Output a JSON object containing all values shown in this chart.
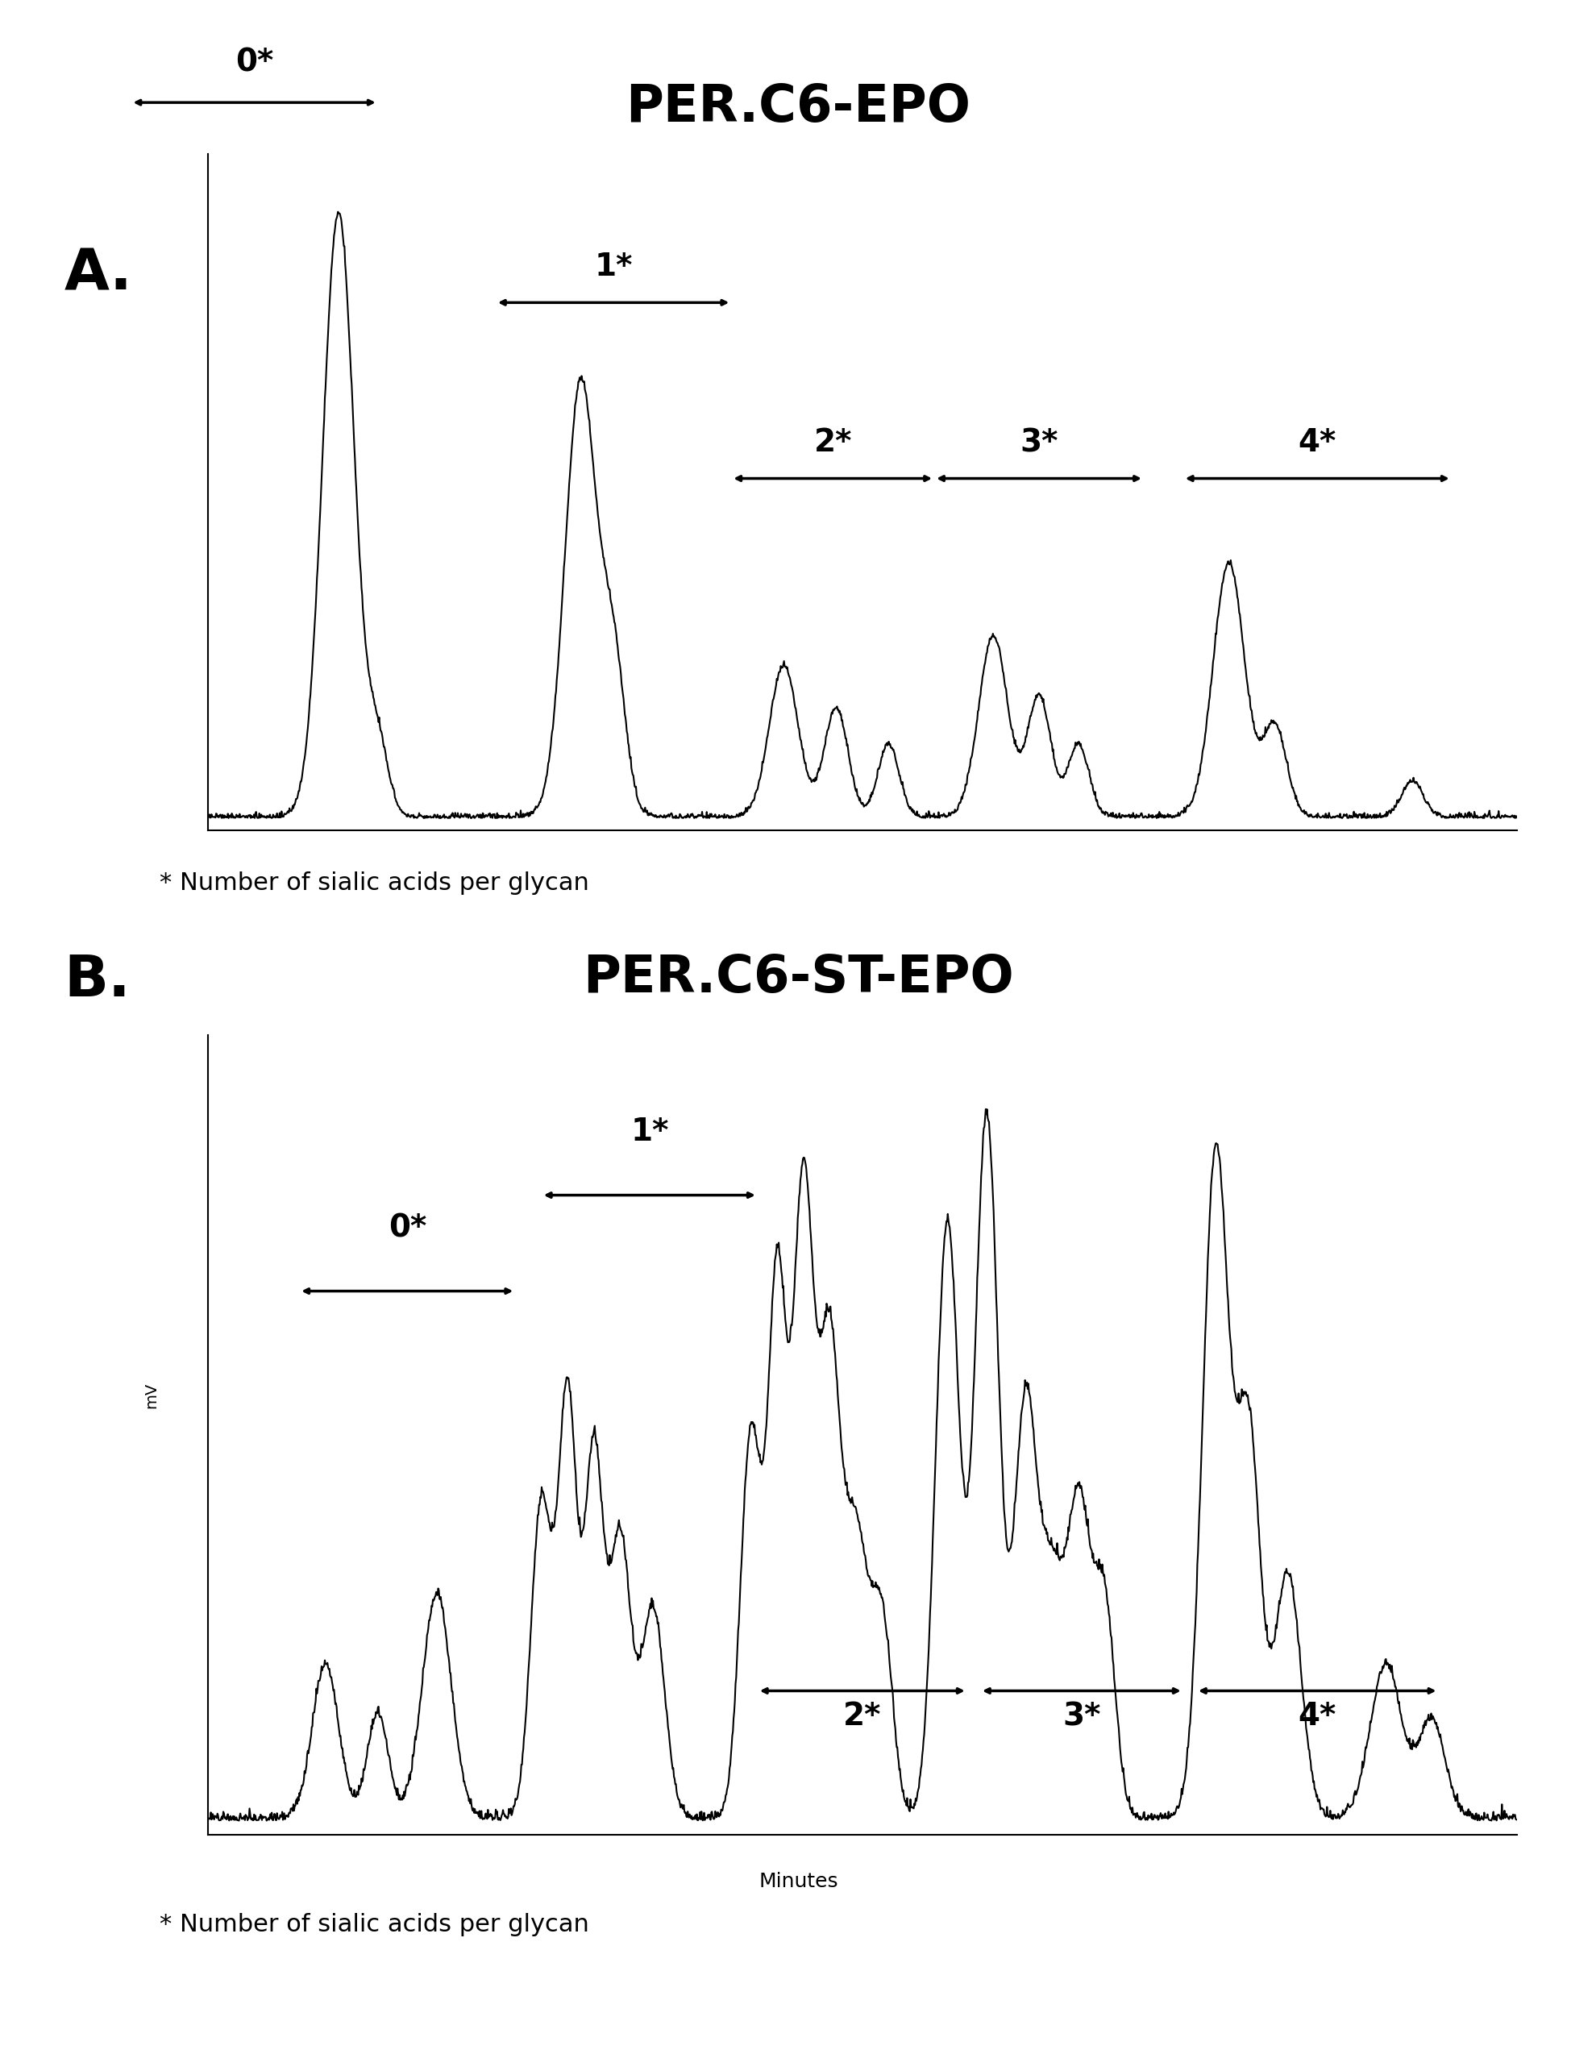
{
  "title_A": "PER.C6-EPO",
  "title_B": "PER.C6-ST-EPO",
  "label_A": "A.",
  "label_B": "B.",
  "footnote": "* Number of sialic acids per glycan",
  "xlabel": "Minutes",
  "ylabel": "mV",
  "background_color": "#ffffff",
  "line_color": "#000000",
  "title_fontsize": 46,
  "label_fontsize": 52,
  "annot_fontsize": 28,
  "footnote_fontsize": 22,
  "xlabel_fontsize": 18
}
